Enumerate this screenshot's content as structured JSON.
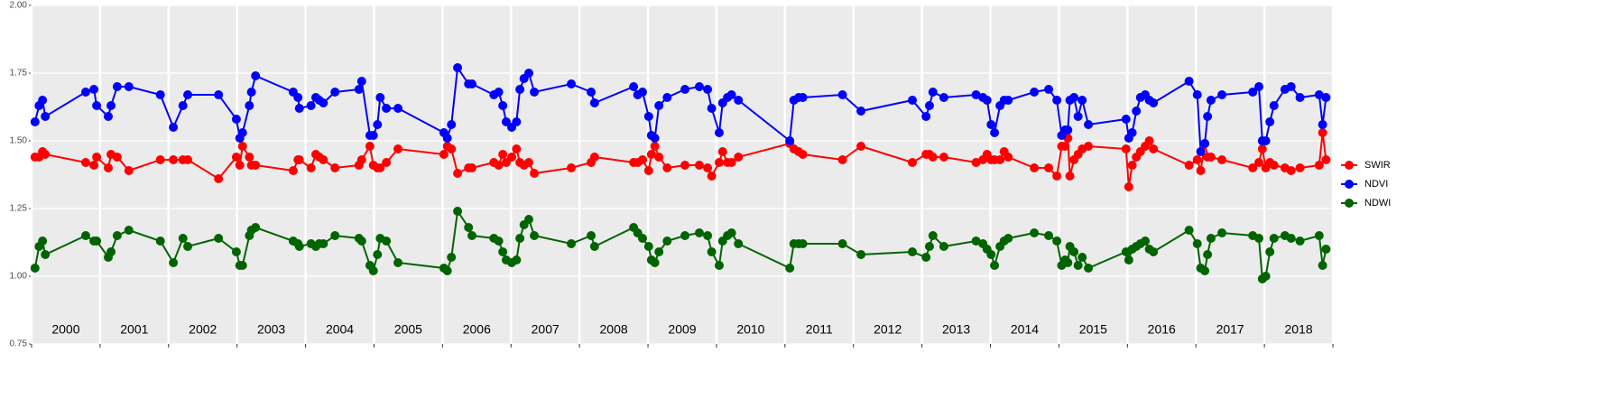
{
  "chart_data": {
    "type": "line",
    "x": [
      2000.05,
      2000.11,
      2000.16,
      2000.2,
      2000.79,
      2000.91,
      2000.95,
      2001.12,
      2001.16,
      2001.25,
      2001.42,
      2001.88,
      2002.07,
      2002.21,
      2002.28,
      2002.73,
      2002.99,
      2003.04,
      2003.08,
      2003.18,
      2003.21,
      2003.27,
      2003.82,
      2003.89,
      2003.91,
      2004.08,
      2004.15,
      2004.2,
      2004.26,
      2004.43,
      2004.78,
      2004.82,
      2004.94,
      2004.99,
      2005.05,
      2005.09,
      2005.18,
      2005.35,
      2006.02,
      2006.07,
      2006.13,
      2006.22,
      2006.38,
      2006.43,
      2006.75,
      2006.82,
      2006.88,
      2006.93,
      2007.01,
      2007.08,
      2007.13,
      2007.19,
      2007.26,
      2007.34,
      2007.88,
      2008.17,
      2008.22,
      2008.79,
      2008.85,
      2008.92,
      2009.01,
      2009.05,
      2009.1,
      2009.16,
      2009.28,
      2009.54,
      2009.75,
      2009.87,
      2009.93,
      2010.04,
      2010.09,
      2010.16,
      2010.22,
      2010.32,
      2011.07,
      2011.13,
      2011.2,
      2011.26,
      2011.84,
      2012.11,
      2012.86,
      2013.06,
      2013.11,
      2013.16,
      2013.32,
      2013.79,
      2013.89,
      2013.95,
      2014.01,
      2014.06,
      2014.14,
      2014.2,
      2014.26,
      2014.64,
      2014.85,
      2014.97,
      2015.04,
      2015.09,
      2015.13,
      2015.16,
      2015.22,
      2015.28,
      2015.34,
      2015.43,
      2015.98,
      2016.02,
      2016.07,
      2016.13,
      2016.19,
      2016.26,
      2016.32,
      2016.38,
      2016.9,
      2017.02,
      2017.07,
      2017.13,
      2017.17,
      2017.22,
      2017.38,
      2017.83,
      2017.92,
      2017.97,
      2018.02,
      2018.08,
      2018.14,
      2018.3,
      2018.39,
      2018.52,
      2018.8,
      2018.85,
      2018.9
    ],
    "series": [
      {
        "name": "SWIR",
        "color": "#ff0000",
        "values": [
          1.44,
          1.44,
          1.46,
          1.45,
          1.42,
          1.41,
          1.44,
          1.4,
          1.45,
          1.44,
          1.39,
          1.43,
          1.43,
          1.43,
          1.43,
          1.36,
          1.44,
          1.41,
          1.48,
          1.44,
          1.41,
          1.41,
          1.39,
          1.43,
          1.43,
          1.4,
          1.45,
          1.44,
          1.43,
          1.4,
          1.41,
          1.43,
          1.48,
          1.41,
          1.4,
          1.4,
          1.42,
          1.47,
          1.45,
          1.48,
          1.47,
          1.38,
          1.4,
          1.4,
          1.42,
          1.41,
          1.45,
          1.42,
          1.44,
          1.47,
          1.42,
          1.41,
          1.42,
          1.38,
          1.4,
          1.42,
          1.44,
          1.42,
          1.42,
          1.43,
          1.39,
          1.45,
          1.48,
          1.44,
          1.4,
          1.41,
          1.41,
          1.4,
          1.37,
          1.42,
          1.46,
          1.42,
          1.42,
          1.44,
          1.49,
          1.47,
          1.46,
          1.45,
          1.43,
          1.48,
          1.42,
          1.45,
          1.45,
          1.44,
          1.44,
          1.42,
          1.43,
          1.45,
          1.43,
          1.43,
          1.43,
          1.46,
          1.44,
          1.4,
          1.4,
          1.37,
          1.48,
          1.48,
          1.51,
          1.37,
          1.43,
          1.45,
          1.47,
          1.48,
          1.47,
          1.33,
          1.41,
          1.44,
          1.46,
          1.48,
          1.5,
          1.47,
          1.41,
          1.43,
          1.39,
          1.49,
          1.44,
          1.44,
          1.43,
          1.4,
          1.42,
          1.47,
          1.4,
          1.42,
          1.41,
          1.4,
          1.39,
          1.4,
          1.41,
          1.53,
          1.43
        ]
      },
      {
        "name": "NDVI",
        "color": "#0000ff",
        "values": [
          1.57,
          1.63,
          1.65,
          1.59,
          1.68,
          1.69,
          1.63,
          1.59,
          1.63,
          1.7,
          1.7,
          1.67,
          1.55,
          1.63,
          1.67,
          1.67,
          1.58,
          1.51,
          1.53,
          1.63,
          1.68,
          1.74,
          1.68,
          1.66,
          1.62,
          1.63,
          1.66,
          1.65,
          1.64,
          1.68,
          1.69,
          1.72,
          1.52,
          1.52,
          1.56,
          1.66,
          1.62,
          1.62,
          1.53,
          1.51,
          1.56,
          1.77,
          1.71,
          1.71,
          1.67,
          1.68,
          1.63,
          1.57,
          1.55,
          1.57,
          1.69,
          1.73,
          1.75,
          1.68,
          1.71,
          1.68,
          1.64,
          1.7,
          1.67,
          1.68,
          1.59,
          1.52,
          1.51,
          1.63,
          1.66,
          1.69,
          1.7,
          1.69,
          1.62,
          1.53,
          1.64,
          1.66,
          1.67,
          1.65,
          1.5,
          1.65,
          1.66,
          1.66,
          1.67,
          1.61,
          1.65,
          1.59,
          1.63,
          1.68,
          1.66,
          1.67,
          1.66,
          1.65,
          1.56,
          1.53,
          1.63,
          1.65,
          1.65,
          1.68,
          1.69,
          1.65,
          1.52,
          1.54,
          1.54,
          1.65,
          1.66,
          1.59,
          1.65,
          1.56,
          1.58,
          1.51,
          1.53,
          1.61,
          1.66,
          1.67,
          1.65,
          1.64,
          1.72,
          1.67,
          1.46,
          1.49,
          1.59,
          1.65,
          1.67,
          1.68,
          1.7,
          1.5,
          1.5,
          1.57,
          1.63,
          1.69,
          1.7,
          1.66,
          1.67,
          1.56,
          1.66
        ]
      },
      {
        "name": "NDWI",
        "color": "#006400",
        "values": [
          1.03,
          1.11,
          1.13,
          1.08,
          1.15,
          1.13,
          1.13,
          1.07,
          1.09,
          1.15,
          1.17,
          1.13,
          1.05,
          1.14,
          1.11,
          1.14,
          1.09,
          1.04,
          1.04,
          1.15,
          1.17,
          1.18,
          1.13,
          1.12,
          1.11,
          1.12,
          1.11,
          1.12,
          1.12,
          1.15,
          1.14,
          1.13,
          1.04,
          1.02,
          1.08,
          1.14,
          1.13,
          1.05,
          1.03,
          1.02,
          1.07,
          1.24,
          1.18,
          1.15,
          1.14,
          1.13,
          1.09,
          1.06,
          1.05,
          1.06,
          1.14,
          1.19,
          1.21,
          1.15,
          1.12,
          1.15,
          1.11,
          1.18,
          1.16,
          1.14,
          1.11,
          1.06,
          1.05,
          1.09,
          1.13,
          1.15,
          1.16,
          1.15,
          1.09,
          1.04,
          1.13,
          1.15,
          1.16,
          1.12,
          1.03,
          1.12,
          1.12,
          1.12,
          1.12,
          1.08,
          1.09,
          1.07,
          1.11,
          1.15,
          1.11,
          1.13,
          1.12,
          1.1,
          1.08,
          1.04,
          1.11,
          1.13,
          1.14,
          1.16,
          1.15,
          1.13,
          1.04,
          1.06,
          1.05,
          1.11,
          1.09,
          1.04,
          1.07,
          1.03,
          1.09,
          1.06,
          1.1,
          1.11,
          1.12,
          1.13,
          1.1,
          1.09,
          1.17,
          1.12,
          1.03,
          1.02,
          1.08,
          1.14,
          1.16,
          1.15,
          1.14,
          0.99,
          1.0,
          1.09,
          1.14,
          1.15,
          1.14,
          1.13,
          1.15,
          1.04,
          1.1
        ]
      }
    ],
    "xlim": [
      2000,
      2019
    ],
    "xticks": [
      2000,
      2001,
      2002,
      2003,
      2004,
      2005,
      2006,
      2007,
      2008,
      2009,
      2010,
      2011,
      2012,
      2013,
      2014,
      2015,
      2016,
      2017,
      2018,
      2019
    ],
    "year_labels": [
      "2000",
      "2001",
      "2002",
      "2003",
      "2004",
      "2005",
      "2006",
      "2007",
      "2008",
      "2009",
      "2010",
      "2011",
      "2012",
      "2013",
      "2014",
      "2015",
      "2016",
      "2017",
      "2018"
    ],
    "ylim": [
      0.75,
      2.0
    ],
    "yticks": [
      {
        "value": 0.75,
        "label": "0.75"
      },
      {
        "value": 1.0,
        "label": "1.00"
      },
      {
        "value": 1.25,
        "label": "1.25"
      },
      {
        "value": 1.5,
        "label": "1.50"
      },
      {
        "value": 1.75,
        "label": "1.75"
      },
      {
        "value": 2.0,
        "label": "2.00"
      }
    ],
    "grid": true,
    "legend": "right"
  }
}
